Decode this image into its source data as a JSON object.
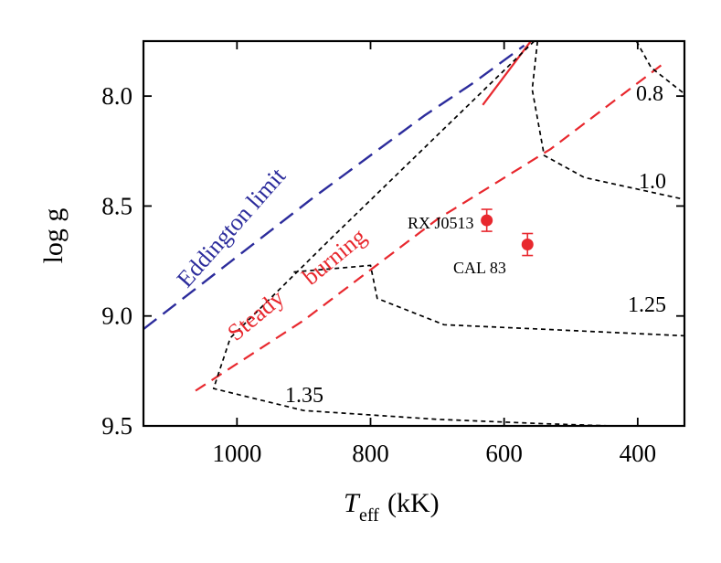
{
  "chart_data": {
    "type": "line",
    "xlabel": "T",
    "xlabel_sub": "eff",
    "xlabel_unit": "(kK)",
    "ylabel": "log g",
    "xlim": [
      1140,
      330
    ],
    "ylim": [
      9.5,
      7.75
    ],
    "y_inverted": true,
    "x_ticks": [
      1000,
      800,
      600,
      400
    ],
    "x_tick_labels": [
      "1000",
      "800",
      "600",
      "400"
    ],
    "y_ticks": [
      8.0,
      8.5,
      9.0,
      9.5
    ],
    "y_tick_labels": [
      "8.0",
      "8.5",
      "9.0",
      "9.5"
    ],
    "grid": false,
    "series": [
      {
        "name": "Eddington limit",
        "color": "#2c2c9c",
        "style": "long-dash",
        "points": [
          [
            1140,
            9.06
          ],
          [
            885,
            8.46
          ],
          [
            720,
            8.09
          ],
          [
            646,
            7.94
          ],
          [
            570,
            7.77
          ]
        ]
      },
      {
        "name": "Steady burning",
        "color": "#e8282e",
        "style": "dashed",
        "points": [
          [
            1062,
            9.34
          ],
          [
            900,
            9.02
          ],
          [
            700,
            8.56
          ],
          [
            530,
            8.24
          ],
          [
            365,
            7.86
          ]
        ]
      },
      {
        "name": "",
        "color": "#e8282e",
        "style": "solid",
        "points": [
          [
            632,
            8.04
          ],
          [
            560,
            7.75
          ]
        ]
      },
      {
        "name": "0.8",
        "color": "#000000",
        "style": "short-dash",
        "points": [
          [
            402,
            7.75
          ],
          [
            380,
            7.87
          ],
          [
            330,
            7.99
          ]
        ]
      },
      {
        "name": "1.0",
        "color": "#000000",
        "style": "short-dash",
        "points": [
          [
            550,
            7.75
          ],
          [
            558,
            7.97
          ],
          [
            540,
            8.27
          ],
          [
            480,
            8.37
          ],
          [
            390,
            8.43
          ],
          [
            330,
            8.47
          ]
        ]
      },
      {
        "name": "1.25",
        "color": "#000000",
        "style": "short-dash",
        "points": [
          [
            915,
            8.8
          ],
          [
            800,
            8.77
          ],
          [
            790,
            8.92
          ],
          [
            690,
            9.04
          ],
          [
            545,
            9.06
          ],
          [
            330,
            9.09
          ]
        ]
      },
      {
        "name": "1.35",
        "color": "#000000",
        "style": "short-dash",
        "points": [
          [
            555,
            7.75
          ],
          [
            860,
            8.65
          ],
          [
            1010,
            9.1
          ],
          [
            1035,
            9.33
          ],
          [
            900,
            9.43
          ],
          [
            700,
            9.47
          ],
          [
            540,
            9.49
          ],
          [
            440,
            9.5
          ]
        ]
      }
    ],
    "points": [
      {
        "name": "RX J0513",
        "x": 626,
        "y": 8.565,
        "yerr": 0.05,
        "color": "#e8282e"
      },
      {
        "name": "CAL 83",
        "x": 565,
        "y": 8.675,
        "yerr": 0.05,
        "color": "#e8282e"
      }
    ],
    "annotations": [
      {
        "text": "0.8",
        "x": 368,
        "y": 7.86
      },
      {
        "text": "1.0",
        "x": 378,
        "y": 8.32
      },
      {
        "text": "1.25",
        "x": 368,
        "y": 8.98
      },
      {
        "text": "1.35",
        "x": 760,
        "y": 9.4
      },
      {
        "text": "Eddington limit"
      },
      {
        "text": "Steady"
      },
      {
        "text": "burning"
      }
    ]
  }
}
